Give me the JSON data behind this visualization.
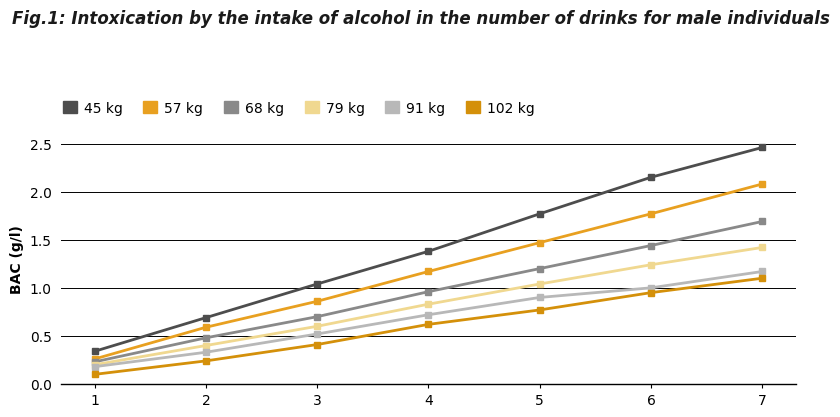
{
  "title": "Fig.1: Intoxication by the intake of alcohol in the number of drinks for male individuals",
  "ylabel": "BAC (g/l)",
  "xlabel": "",
  "xlim": [
    0.7,
    7.3
  ],
  "ylim": [
    0.0,
    2.6
  ],
  "yticks": [
    0.0,
    0.5,
    1.0,
    1.5,
    2.0,
    2.5
  ],
  "xticks": [
    1,
    2,
    3,
    4,
    5,
    6,
    7
  ],
  "background_color": "#ffffff",
  "series": [
    {
      "label": "45 kg",
      "color": "#4d4d4d",
      "values": [
        0.34,
        0.69,
        1.04,
        1.38,
        1.77,
        2.15,
        2.46
      ]
    },
    {
      "label": "57 kg",
      "color": "#e8a020",
      "values": [
        0.26,
        0.59,
        0.86,
        1.17,
        1.47,
        1.77,
        2.08
      ]
    },
    {
      "label": "68 kg",
      "color": "#898989",
      "values": [
        0.23,
        0.48,
        0.7,
        0.96,
        1.2,
        1.44,
        1.69
      ]
    },
    {
      "label": "79 kg",
      "color": "#f0d890",
      "values": [
        0.2,
        0.4,
        0.6,
        0.83,
        1.04,
        1.24,
        1.42
      ]
    },
    {
      "label": "91 kg",
      "color": "#b8b8b8",
      "values": [
        0.18,
        0.33,
        0.52,
        0.72,
        0.9,
        1.0,
        1.17
      ]
    },
    {
      "label": "102 kg",
      "color": "#d4900a",
      "values": [
        0.1,
        0.24,
        0.41,
        0.62,
        0.77,
        0.95,
        1.1
      ]
    }
  ],
  "marker": "s",
  "marker_size": 5,
  "linewidth": 2.0,
  "title_fontsize": 12,
  "axis_fontsize": 10,
  "legend_fontsize": 10,
  "tick_fontsize": 10
}
